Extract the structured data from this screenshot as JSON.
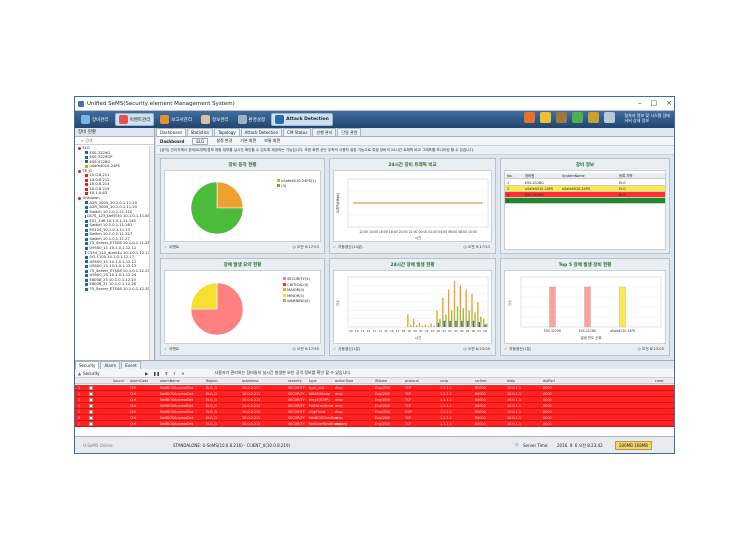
{
  "window": {
    "title": "Unified SeMS(Security element Management System)"
  },
  "toolbar": {
    "buttons": [
      {
        "label": "장비관리"
      },
      {
        "label": "이벤트관리"
      },
      {
        "label": "보고서관리"
      },
      {
        "label": "정보관리"
      },
      {
        "label": "환경설정"
      }
    ],
    "attack": "Attack Detection",
    "info1": "접속자 정보 및 시스템 상태",
    "info2": "서버 상태 정보"
  },
  "left": {
    "header": "장비 현황",
    "search": "검색",
    "tree": [
      {
        "label": "ELG",
        "level": 0,
        "color": "#e02020"
      },
      {
        "label": "ESS-3229G",
        "level": 1,
        "color": "#1e62b0"
      },
      {
        "label": "ESS-3229GP",
        "level": 1,
        "color": "#1e62b0"
      },
      {
        "label": "ESS-4128G",
        "level": 1,
        "color": "#1e62b0"
      },
      {
        "label": "uSafe4010-24PS",
        "level": 1,
        "color": "#e8a000"
      },
      {
        "label": "TE_G",
        "level": 0,
        "color": "#e02020"
      },
      {
        "label": "10.0.8.211",
        "level": 1,
        "color": "#e02020"
      },
      {
        "label": "10.0.8.212",
        "level": 1,
        "color": "#e02020"
      },
      {
        "label": "10.0.8.214",
        "level": 1,
        "color": "#e02020"
      },
      {
        "label": "10.0.8.219",
        "level": 1,
        "color": "#e02020"
      },
      {
        "label": "10.1.0.63",
        "level": 1,
        "color": "#e02020"
      },
      {
        "label": "Unknown",
        "level": 0,
        "color": "#e02020"
      },
      {
        "label": "A2R_3005_10.1.0.1.11.10",
        "level": 1,
        "color": "#1e62b0"
      },
      {
        "label": "A2R_3005_10.1.0.1.11.20",
        "level": 1,
        "color": "#1e62b0"
      },
      {
        "label": "Switch 10.1.0.1.11.110",
        "level": 1,
        "color": "#1e62b0"
      },
      {
        "label": "C87S_123_DeNT40 10.1.0.1.11.80",
        "level": 1,
        "color": "#1e62b0"
      },
      {
        "label": "ES1_146 10.1.0.1.11.140",
        "level": 1,
        "color": "#1e62b0"
      },
      {
        "label": "Switch 10.1.0.1.11.161",
        "level": 1,
        "color": "#1e62b0"
      },
      {
        "label": "ES124_10.1.0.1.11.13",
        "level": 1,
        "color": "#1e62b0"
      },
      {
        "label": "Switch 10.1.0.1.11.227",
        "level": 1,
        "color": "#1e62b0"
      },
      {
        "label": "Switch 10.1.0.1.11.27",
        "level": 1,
        "color": "#1e62b0"
      },
      {
        "label": "75_Server_E7S08 10.1.0.1.11.28",
        "level": 1,
        "color": "#1e62b0"
      },
      {
        "label": "U9500_11 10.1.0.1.12.11",
        "level": 1,
        "color": "#1e62b0"
      },
      {
        "label": "C554_110_dumi4u 10.1.0.1.12.17",
        "level": 1,
        "color": "#1e62b0"
      },
      {
        "label": "OG-1100 10.1.0.1.12.17",
        "level": 1,
        "color": "#1e62b0"
      },
      {
        "label": "U9500_11 10.1.0.1.12.12",
        "level": 1,
        "color": "#1e62b0"
      },
      {
        "label": "U9500_21 10.1.0.1.12.13",
        "level": 1,
        "color": "#1e62b0"
      },
      {
        "label": "75_Server_E7S08 10.1.0.1.12.20",
        "level": 1,
        "color": "#1e62b0"
      },
      {
        "label": "U9500_25 10.1.0.1.12.24",
        "level": 1,
        "color": "#1e62b0"
      },
      {
        "label": "E8008_23 10.1.0.1.12.23",
        "level": 1,
        "color": "#1e62b0"
      },
      {
        "label": "E8008_31 10.1.0.1.12.28",
        "level": 1,
        "color": "#1e62b0"
      },
      {
        "label": "75_Server_E7S08 10.1.0.1.12.30",
        "level": 1,
        "color": "#1e62b0"
      }
    ]
  },
  "tabs": [
    "Dashboard",
    "Statistics",
    "Topology",
    "Attack Detection",
    "CM Status",
    "선행 관리",
    "단말 관련"
  ],
  "subbar": [
    "Dashboard",
    "ELG",
    "설정 변경",
    "기본 화면",
    "보통 화면"
  ],
  "notice": "[공지] 관리자께서 장비/트래픽/경보 현황 정보를 실시간 확인할 수 있도록 제공하는 기능입니다. 또한 화면 상단 우측의 사용자 설정 기능으로 특정 장비의 24시간 트래픽 비교 그래프를 모니터링 할 수 있습니다.",
  "panels": {
    "status": {
      "title": "장비 동작 현황",
      "legend": [
        "uSafe4010-24PS(1)",
        "(3)"
      ],
      "foot_left": "이벤트",
      "foot_right": "오전 9:17:53"
    },
    "traffic": {
      "title": "24시간 장비 트래픽 비교",
      "ylabel": "트래픽(Mbps)",
      "xlabel": "시간",
      "ticks": "12:00 14:00 16:00 18:00 20:00 22:00 00:00 02:00 04:00 06:00 08:00 10:00",
      "foot_left": "자동갱신(10분)",
      "foot_right": "오전 9:17:53"
    },
    "info": {
      "title": "장비 정보",
      "cols": [
        "No.",
        "장비명",
        "SystemName",
        "등록 지역"
      ],
      "rows": [
        {
          "no": "1",
          "name": "ESS-4128G",
          "sys": "",
          "region": "ELG",
          "color": "#ffffff"
        },
        {
          "no": "2",
          "name": "uSafe4010-24PS",
          "sys": "uSafe4010-24PS",
          "region": "ELG",
          "color": "#ffe84a"
        },
        {
          "no": "3",
          "name": "ESS-3229G",
          "sys": "",
          "region": "ELG",
          "color": "#ff3030"
        },
        {
          "no": "4",
          "name": "",
          "sys": "",
          "region": "",
          "color": "#1e8a2e"
        }
      ]
    },
    "severity": {
      "title": "장애 발생 요약 현황",
      "legend": [
        "SECURITY(3)",
        "CRITICAL(0)",
        "MAJOR(0)",
        "MINOR(1)",
        "WARNING(0)"
      ],
      "foot_left": "이벤트",
      "foot_right": "오전 9:17:55"
    },
    "alarm24": {
      "title": "24시간 장애 발생 현황",
      "ylabel": "건수",
      "xlabel": "시간",
      "ticks": "09 10 11 12 13 14 15 16 17 18 19 20 21 22 23 00 01 02 03 04 05 06 07 08",
      "foot_left": "자동갱신(1분)",
      "foot_right": "오전 8:23:05"
    },
    "top5": {
      "title": "Top 5 장애 발생 장비 현황",
      "ylabel": "건수",
      "xlabel": "발생 빈도 순위",
      "foot_left": "자동갱신(1분)",
      "foot_right": "오전 8:23:05"
    }
  },
  "chart_data": [
    {
      "type": "pie",
      "title": "장비 동작 현황",
      "series": [
        {
          "name": "uSafe4010-24PS(1)",
          "value": 1,
          "color": "#f0a030"
        },
        {
          "name": "(3)",
          "value": 3,
          "color": "#4cbb3c"
        }
      ]
    },
    {
      "type": "line",
      "title": "24시간 장비 트래픽 비교",
      "xlabel": "시간",
      "ylabel": "트래픽(Mbps)",
      "categories": [
        "12:00",
        "14:00",
        "16:00",
        "18:00",
        "20:00",
        "22:00",
        "00:00",
        "02:00",
        "04:00",
        "06:00",
        "08:00",
        "10:00"
      ],
      "values": [
        0,
        0,
        0,
        0,
        0,
        0,
        0,
        0,
        0,
        0,
        0,
        0
      ]
    },
    {
      "type": "pie",
      "title": "장애 발생 요약 현황",
      "series": [
        {
          "name": "SECURITY(3)",
          "value": 3,
          "color": "#ff8080"
        },
        {
          "name": "CRITICAL(0)",
          "value": 0,
          "color": "#ff3030"
        },
        {
          "name": "MAJOR(0)",
          "value": 0,
          "color": "#f5a030"
        },
        {
          "name": "MINOR(1)",
          "value": 1,
          "color": "#f5e030"
        },
        {
          "name": "WARNING(0)",
          "value": 0,
          "color": "#aaaaaa"
        }
      ]
    },
    {
      "type": "bar",
      "title": "24시간 장애 발생 현황",
      "xlabel": "시간",
      "ylabel": "건수",
      "ylim": [
        0,
        1200
      ],
      "categories": [
        "09",
        "10",
        "11",
        "12",
        "13",
        "14",
        "15",
        "16",
        "17",
        "18",
        "19",
        "20",
        "21",
        "22",
        "23",
        "00",
        "01",
        "02",
        "03",
        "04",
        "05",
        "06",
        "07",
        "08"
      ],
      "series": [
        {
          "color": "#f0a030",
          "values": [
            0,
            0,
            0,
            0,
            0,
            0,
            0,
            0,
            0,
            0,
            300,
            200,
            100,
            60,
            80,
            400,
            700,
            900,
            1100,
            1000,
            900,
            800,
            600,
            200
          ]
        },
        {
          "color": "#2a6fb8",
          "values": [
            0,
            0,
            0,
            0,
            0,
            0,
            0,
            0,
            0,
            0,
            0,
            0,
            0,
            0,
            0,
            100,
            150,
            150,
            150,
            150,
            150,
            150,
            120,
            60
          ]
        },
        {
          "color": "#7fc84a",
          "values": [
            0,
            0,
            0,
            0,
            0,
            0,
            0,
            0,
            0,
            0,
            60,
            40,
            30,
            20,
            30,
            200,
            300,
            400,
            500,
            450,
            400,
            350,
            250,
            80
          ]
        }
      ]
    },
    {
      "type": "bar",
      "title": "Top 5 장애 발생 장비 현황",
      "xlabel": "발생 빈도 순위",
      "ylabel": "건수",
      "ylim": [
        0,
        50
      ],
      "categories": [
        "ESS-3229G",
        "ESS-4128G",
        "uSafe4010-24PS"
      ],
      "series": [
        {
          "values": [
            40,
            40,
            40
          ]
        }
      ],
      "colors": [
        "#ffa0a0",
        "#ffa0a0",
        "#ffe84a"
      ]
    }
  ],
  "bottom": {
    "tabs": [
      "Security",
      "Alarm",
      "Event"
    ],
    "bar": "Security",
    "bar_msg": "사용자가 관리하는 장비들의 실시간 발생한 보안 공격 정보를 확인 할 수 있습니다.",
    "cols": [
      "",
      "Sound",
      "alarmCode",
      "alarmName",
      "Region",
      "ipAddress",
      "severity",
      "type",
      "actionType",
      "ifName",
      "protocol",
      "srcIp",
      "srcPort",
      "dstIp",
      "dstPort",
      "creat"
    ],
    "rows": [
      [
        "1",
        "",
        "Ctrl",
        "NetBIOSAnomalDet",
        "ELG_G",
        "10.0.0.211",
        "SECURITY",
        "bypl_xx0",
        "drop",
        "Eng0/0/0",
        "TCP",
        "1.1.1.1",
        "80000",
        "10.0.1.1",
        "0000"
      ],
      [
        "2",
        "",
        "Ctrl",
        "NetBIOSAnomalDet",
        "ELG_G",
        "10.0.0.211",
        "SECURITY",
        "NMAP/Nmap",
        "drop",
        "Eng0/0/0",
        "TCP",
        "1.1.1.1",
        "80000",
        "10.0.1.1",
        "0000"
      ],
      [
        "3",
        "",
        "Ctrl",
        "NetBIOSAnomalDet",
        "ELG_G",
        "10.0.0.210",
        "SECURITY",
        "ping3(ICMP)",
        "drop",
        "Eng0/0/0",
        "TCP",
        "1.1.1.1",
        "80000",
        "10.0.1.1",
        "0000"
      ],
      [
        "4",
        "",
        "Ctrl",
        "NetBIOSAnomalDet",
        "ELG_G",
        "10.0.0.210",
        "SECURITY",
        "PortScanXmas",
        "drop",
        "Eng0/0/0",
        "TCP",
        "1.1.1.1",
        "80000",
        "10.0.1.1",
        "0000"
      ],
      [
        "5",
        "",
        "Ctrl",
        "NetBIOSAnomalDet",
        "ELG_G",
        "10.0.0.210",
        "SECURITY",
        "UdpFlood",
        "drop",
        "Eng0/0/0",
        "UDP",
        "1.1.1.1",
        "80000",
        "10.0.1.1",
        "0000"
      ],
      [
        "6",
        "",
        "Ctrl",
        "NetBIOSAnomalDet",
        "ELG_G",
        "10.0.0.211",
        "SECURITY",
        "NetBIOSOverflow",
        "drop",
        "Eng0/0/0",
        "TCP",
        "1.1.1.1",
        "80000",
        "10.0.1.1",
        "0000"
      ],
      [
        "7",
        "",
        "Ctrl",
        "NetBIOSAnomalDet",
        "ELG_G",
        "10.0.0.210",
        "SECURITY",
        "NetOverflowBroadcast",
        "drop",
        "Eng0/0/0",
        "TCP",
        "1.1.1.1",
        "80000",
        "10.0.1.1",
        "0000"
      ]
    ]
  },
  "status": {
    "left": "U-SeMS Online",
    "center": "STANDALONE: U-SeMS(10.0.8.216) - CLIENT_0(10.0.8.219)",
    "server_label": "Server Time:",
    "server_time": "2016. 9. 6 오전 8:23:42",
    "mem": "206MB 168MB"
  }
}
